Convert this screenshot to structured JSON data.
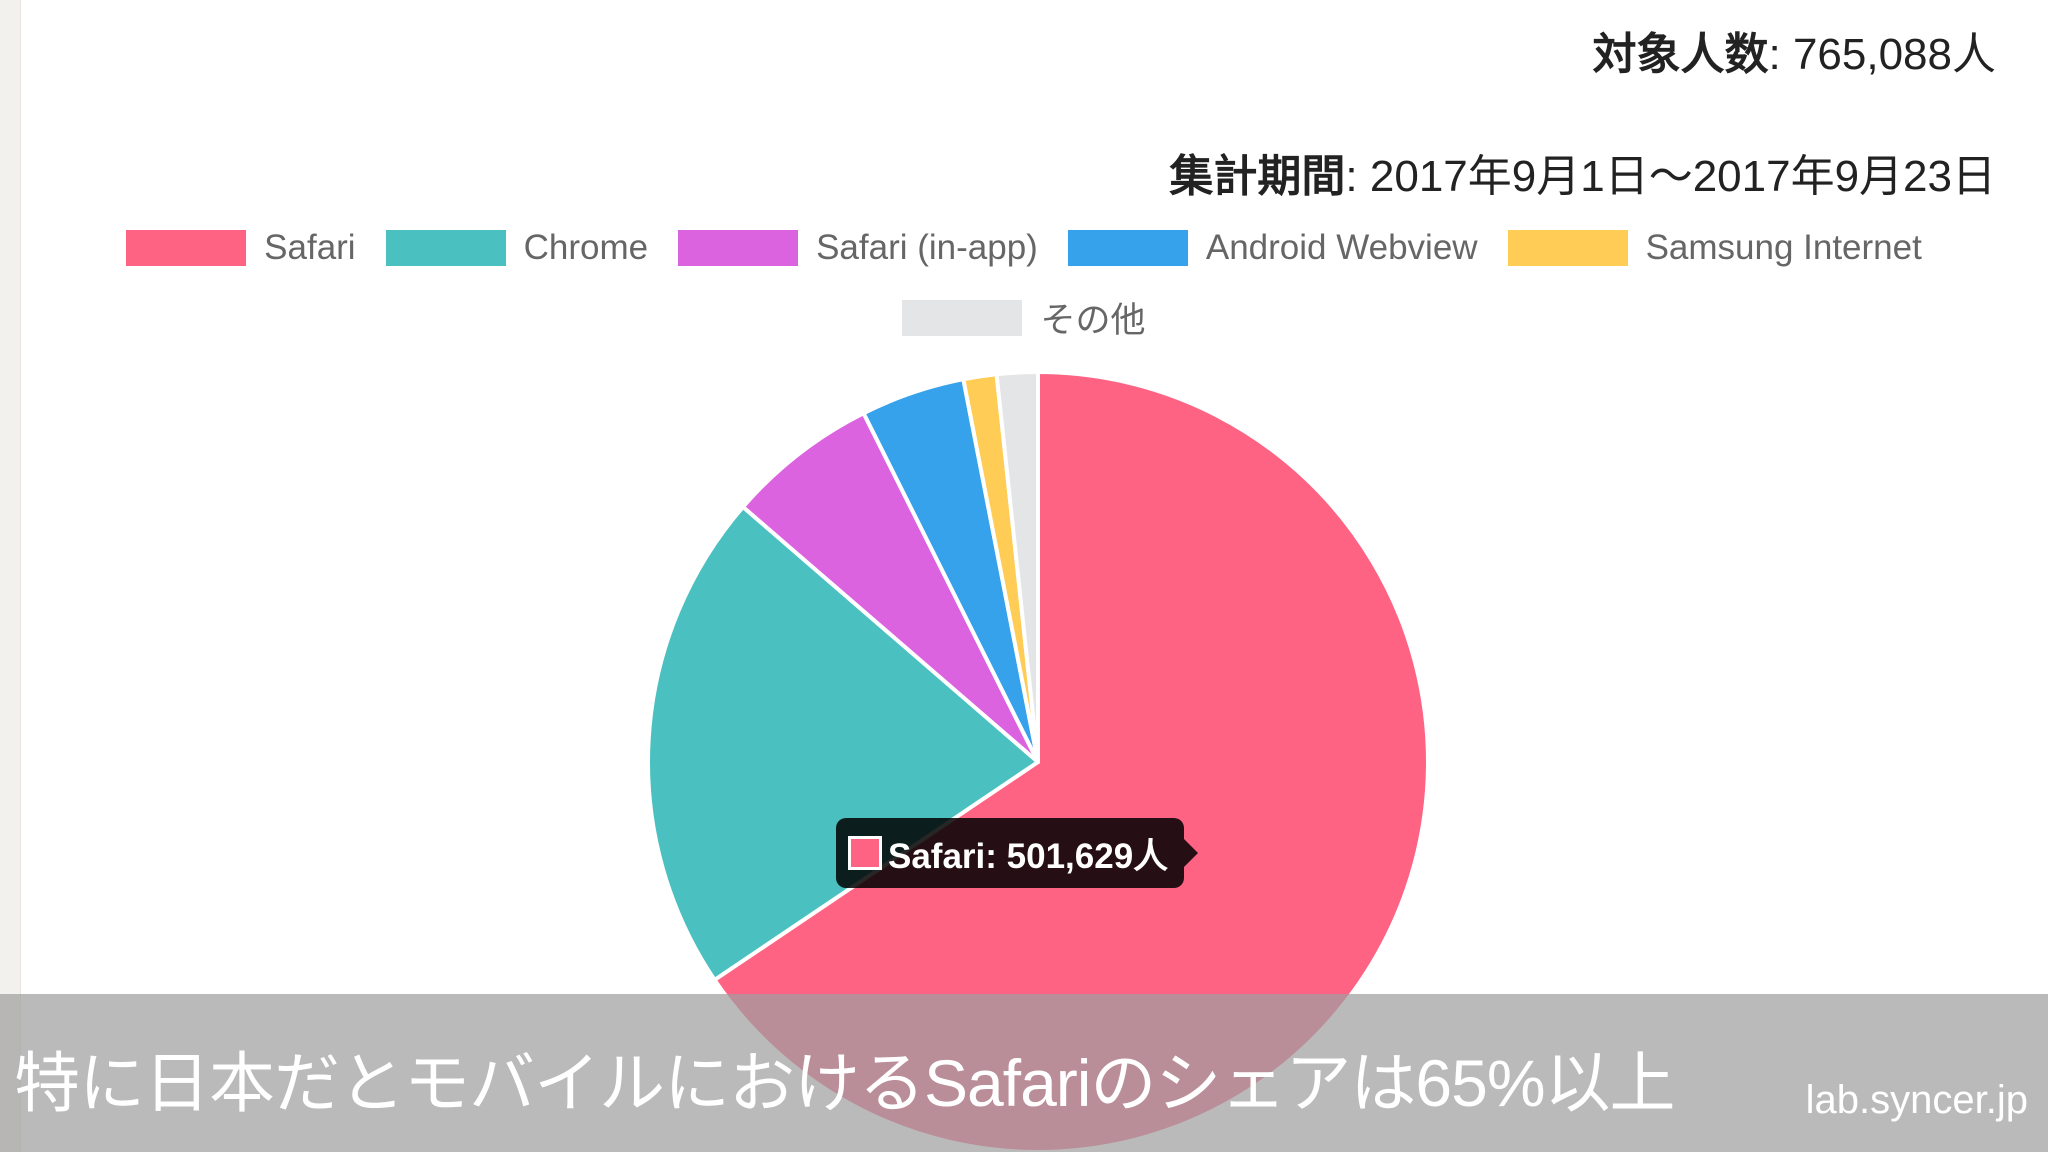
{
  "header": {
    "target_label": "対象人数",
    "target_value": ": 765,088人",
    "period_label": "集計期間",
    "period_value": ": 2017年9月1日〜2017年9月23日"
  },
  "tooltip": {
    "text": "Safari: 501,629人",
    "color": "#ff6384"
  },
  "caption": "特に日本だとモバイルにおけるSafariのシェアは65%以上",
  "watermark": "lab.syncer.jp",
  "chart_data": {
    "type": "pie",
    "categories": [
      "Safari",
      "Chrome",
      "Safari (in-app)",
      "Android Webview",
      "Samsung Internet",
      "その他"
    ],
    "values": [
      501629,
      159000,
      48000,
      33000,
      10500,
      12959
    ],
    "colors": [
      "#ff6384",
      "#4bc0c0",
      "#dc63e0",
      "#36a2eb",
      "#ffcd56",
      "#e4e5e7"
    ],
    "legend_position": "top",
    "start_angle": "top, clockwise"
  }
}
